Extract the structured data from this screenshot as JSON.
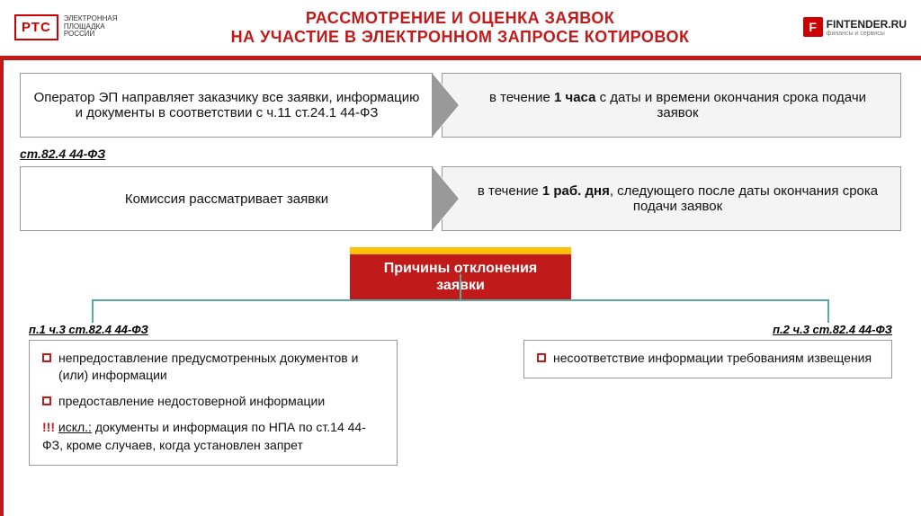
{
  "header": {
    "logo_left_main": "РТС",
    "logo_left_sub": "ЭЛЕКТРОННАЯ\nПЛОЩАДКА\nРОССИИ",
    "title_line1": "РАССМОТРЕНИЕ И ОЦЕНКА ЗАЯВОК",
    "title_line2": "НА УЧАСТИЕ В ЭЛЕКТРОННОМ ЗАПРОСЕ КОТИРОВОК",
    "logo_right_icon": "F",
    "logo_right_text": "FINTENDER.RU",
    "logo_right_sub": "финансы и сервисы"
  },
  "row1": {
    "left": "Оператор ЭП направляет заказчику все заявки, информацию и документы в соответствии с ч.11 ст.24.1 44-ФЗ",
    "right_pre": "в течение ",
    "right_bold": "1 часа",
    "right_post": " с даты и времени окончания срока подачи заявок"
  },
  "law_ref1": "ст.82.4 44-ФЗ",
  "row2": {
    "left": "Комиссия рассматривает заявки",
    "right_pre": "в течение ",
    "right_bold": "1 раб. дня",
    "right_post": ", следующего после даты окончания срока подачи заявок"
  },
  "banner": {
    "line1": "Причины отклонения",
    "line2": "заявки"
  },
  "left_box": {
    "ref": "п.1 ч.3 ст.82.4 44-ФЗ",
    "b1": "непредоставление предусмотренных документов и (или) информации",
    "b2": "предоставление недостоверной информации",
    "excl_prefix": "!!! ",
    "excl_under": "искл.:",
    "excl_rest": " документы и информация по НПА по ст.14 44-ФЗ, кроме случаев, когда установлен запрет"
  },
  "right_box": {
    "ref": "п.2 ч.3 ст.82.4 44-ФЗ",
    "b1": "несоответствие информации требованиям извещения"
  },
  "colors": {
    "accent_red": "#c01a1a",
    "accent_yellow": "#ffc107",
    "connector": "#5aa9a0",
    "box_border": "#999999",
    "row_right_bg": "#f4f4f4"
  }
}
